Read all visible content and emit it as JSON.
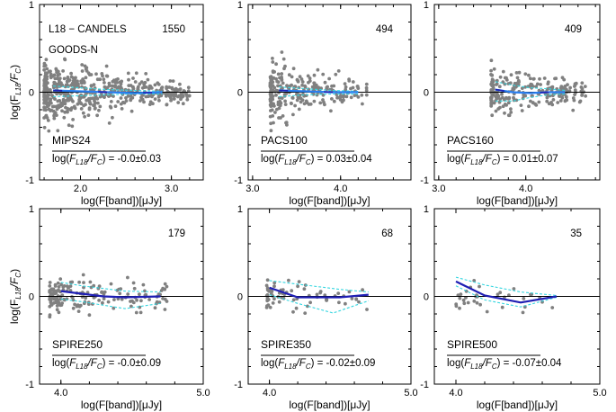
{
  "figure": {
    "ylabel_text": "log(F",
    "ylabel_sub": "L18",
    "ylabel_mid": "/F",
    "ylabel_sub2": "C",
    "ylabel_end": ")",
    "xlabel_text": "log(F[band])[μJy]",
    "mean_label_prefix": "log(",
    "mean_label_F": "F",
    "mean_label_sub1": "L18",
    "mean_label_mid": "/F",
    "mean_label_sub2": "C",
    "mean_label_suffix": ")",
    "mean_label_eq": " = ",
    "title_line1": "L18 − CANDELS",
    "title_line2": "GOODS-N"
  },
  "chart_data": [
    {
      "type": "scatter",
      "band": "MIPS24",
      "count": "1550",
      "mean": "-0.0±0.03",
      "xlim": [
        1.55,
        3.35
      ],
      "ylim": [
        -1,
        1
      ],
      "xticks": [
        2.0,
        3.0
      ],
      "xticklabels": [
        "2.0",
        "3.0"
      ],
      "yticks": [
        -1,
        0,
        1
      ],
      "yticklabels": [
        "-1",
        "0",
        "1"
      ],
      "median": {
        "x": [
          1.7,
          2.0,
          2.3,
          2.6,
          2.9
        ],
        "y": [
          0.02,
          0.01,
          0.0,
          -0.01,
          0.0
        ]
      },
      "upper": {
        "x": [
          1.7,
          2.0,
          2.3,
          2.6,
          2.9
        ],
        "y": [
          0.07,
          0.05,
          0.03,
          0.02,
          0.01
        ]
      },
      "lower": {
        "x": [
          1.7,
          2.0,
          2.3,
          2.6,
          2.9
        ],
        "y": [
          -0.05,
          -0.04,
          -0.03,
          -0.02,
          -0.02
        ]
      },
      "scatter": {
        "x": [
          1.6,
          3.2
        ],
        "sigma_lo": 0.18,
        "sigma_hi": 0.04,
        "n": 520,
        "seed": 11
      }
    },
    {
      "type": "scatter",
      "band": "PACS100",
      "count": "494",
      "mean": "0.03±0.04",
      "xlim": [
        2.95,
        4.8
      ],
      "ylim": [
        -1,
        1
      ],
      "xticks": [
        3.0,
        4.0
      ],
      "xticklabels": [
        "3.0",
        "4.0"
      ],
      "yticks": [
        -1,
        0,
        1
      ],
      "yticklabels": [
        "-1",
        "0",
        "1"
      ],
      "median": {
        "x": [
          3.3,
          3.6,
          3.9,
          4.2
        ],
        "y": [
          0.02,
          0.01,
          0.0,
          0.0
        ]
      },
      "upper": {
        "x": [
          3.3,
          3.6,
          3.9,
          4.2
        ],
        "y": [
          0.06,
          0.04,
          0.02,
          0.01
        ]
      },
      "lower": {
        "x": [
          3.3,
          3.6,
          3.9,
          4.2
        ],
        "y": [
          -0.05,
          -0.03,
          -0.02,
          -0.02
        ]
      },
      "scatter": {
        "x": [
          3.2,
          4.3
        ],
        "sigma_lo": 0.16,
        "sigma_hi": 0.04,
        "n": 260,
        "seed": 23
      }
    },
    {
      "type": "scatter",
      "band": "PACS160",
      "count": "409",
      "mean": "0.01±0.07",
      "xlim": [
        2.95,
        4.85
      ],
      "ylim": [
        -1,
        1
      ],
      "xticks": [
        3.0,
        4.0
      ],
      "xticklabels": [
        "3.0",
        "4.0"
      ],
      "yticks": [
        -1,
        0,
        1
      ],
      "yticklabels": [
        "-1",
        "0",
        "1"
      ],
      "median": {
        "x": [
          3.65,
          3.85,
          4.05,
          4.25,
          4.45
        ],
        "y": [
          0.03,
          0.0,
          -0.01,
          0.0,
          0.0
        ]
      },
      "upper": {
        "x": [
          3.65,
          3.85,
          4.05,
          4.25,
          4.45
        ],
        "y": [
          0.12,
          0.08,
          0.05,
          0.04,
          0.02
        ]
      },
      "lower": {
        "x": [
          3.65,
          3.85,
          4.05,
          4.25,
          4.45
        ],
        "y": [
          -0.1,
          -0.1,
          -0.06,
          -0.03,
          -0.02
        ]
      },
      "scatter": {
        "x": [
          3.6,
          4.7
        ],
        "sigma_lo": 0.12,
        "sigma_hi": 0.07,
        "n": 240,
        "seed": 37
      }
    },
    {
      "type": "scatter",
      "band": "SPIRE250",
      "count": "179",
      "mean": "-0.0±0.09",
      "xlim": [
        3.85,
        5.0
      ],
      "ylim": [
        -1,
        1
      ],
      "xticks": [
        4.0,
        5.0
      ],
      "xticklabels": [
        "4.0",
        "5.0"
      ],
      "yticks": [
        -1,
        0,
        1
      ],
      "yticklabels": [
        "-1",
        "0",
        "1"
      ],
      "median": {
        "x": [
          4.0,
          4.15,
          4.3,
          4.45,
          4.7
        ],
        "y": [
          0.06,
          0.03,
          0.0,
          -0.01,
          0.0
        ]
      },
      "upper": {
        "x": [
          4.0,
          4.15,
          4.3,
          4.45,
          4.7
        ],
        "y": [
          0.16,
          0.12,
          0.09,
          0.06,
          0.05
        ]
      },
      "lower": {
        "x": [
          4.0,
          4.15,
          4.3,
          4.45,
          4.7
        ],
        "y": [
          -0.03,
          -0.06,
          -0.1,
          -0.14,
          -0.08
        ]
      },
      "scatter": {
        "x": [
          3.92,
          4.75
        ],
        "sigma_lo": 0.1,
        "sigma_hi": 0.08,
        "n": 170,
        "seed": 41
      }
    },
    {
      "type": "scatter",
      "band": "SPIRE350",
      "count": "68",
      "mean": "-0.02±0.09",
      "xlim": [
        3.85,
        5.0
      ],
      "ylim": [
        -1,
        1
      ],
      "xticks": [
        4.0,
        5.0
      ],
      "xticklabels": [
        "4.0",
        "5.0"
      ],
      "yticks": [
        -1,
        0,
        1
      ],
      "yticklabels": [
        "-1",
        "0",
        "1"
      ],
      "median": {
        "x": [
          4.0,
          4.2,
          4.5,
          4.7
        ],
        "y": [
          0.1,
          -0.01,
          -0.01,
          0.02
        ]
      },
      "upper": {
        "x": [
          4.0,
          4.2,
          4.5,
          4.7
        ],
        "y": [
          0.18,
          0.14,
          0.08,
          0.05
        ]
      },
      "lower": {
        "x": [
          4.0,
          4.2,
          4.45,
          4.7
        ],
        "y": [
          0.02,
          -0.08,
          -0.19,
          -0.05
        ]
      },
      "scatter": {
        "x": [
          3.98,
          4.72
        ],
        "sigma_lo": 0.09,
        "sigma_hi": 0.09,
        "n": 68,
        "seed": 53
      }
    },
    {
      "type": "scatter",
      "band": "SPIRE500",
      "count": "35",
      "mean": "-0.07±0.04",
      "xlim": [
        3.85,
        5.0
      ],
      "ylim": [
        -1,
        1
      ],
      "xticks": [
        4.0,
        5.0
      ],
      "xticklabels": [
        "4.0",
        "5.0"
      ],
      "yticks": [
        -1,
        0,
        1
      ],
      "yticklabels": [
        "-1",
        "0",
        "1"
      ],
      "median": {
        "x": [
          4.0,
          4.2,
          4.45,
          4.7
        ],
        "y": [
          0.17,
          0.01,
          -0.07,
          0.0
        ]
      },
      "upper": {
        "x": [
          4.0,
          4.2,
          4.45,
          4.7
        ],
        "y": [
          0.22,
          0.13,
          0.05,
          0.01
        ]
      },
      "lower": {
        "x": [
          4.0,
          4.2,
          4.45,
          4.7
        ],
        "y": [
          0.12,
          -0.04,
          -0.12,
          -0.01
        ]
      },
      "scatter": {
        "x": [
          4.0,
          4.7
        ],
        "sigma_lo": 0.08,
        "sigma_hi": 0.08,
        "n": 35,
        "seed": 61
      }
    }
  ],
  "colors": {
    "points": "#808080",
    "median": "#1f1fb4",
    "envelope": "#35d6e0",
    "mips_line": "#2a7ff0",
    "axis": "#000000"
  }
}
